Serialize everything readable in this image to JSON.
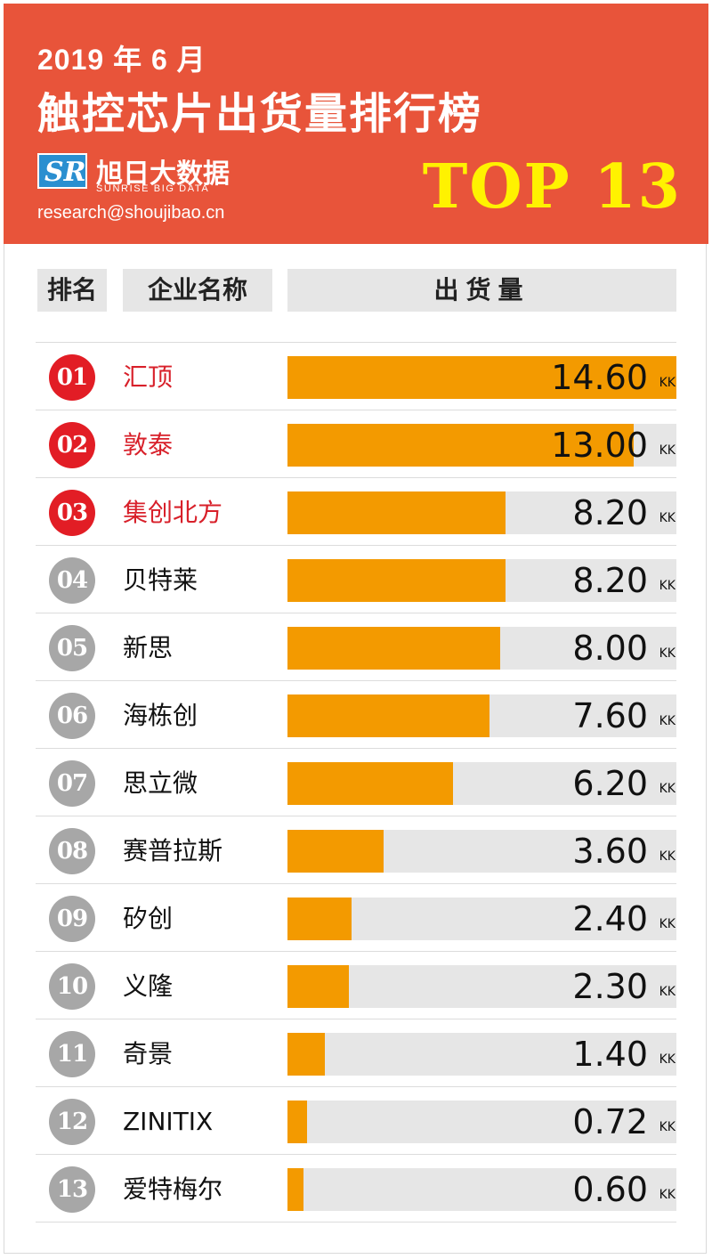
{
  "header": {
    "date": "2019 年 6 月",
    "title": "触控芯片出货量排行榜",
    "logo_mark": "SR",
    "logo_cn": "旭日大数据",
    "logo_en": "SUNRISE BIG DATA",
    "email": "research@shoujibao.cn",
    "top_label": "TOP 13"
  },
  "columns": {
    "rank": "排名",
    "name": "企业名称",
    "value": "出货量"
  },
  "colors": {
    "header_bg": "#e8543a",
    "bar": "#f39a00",
    "track": "#e6e6e6",
    "top3_badge": "#e21d25",
    "other_badge": "#a7a7a7"
  },
  "chart_data": {
    "type": "bar",
    "orientation": "horizontal",
    "unit": "KK",
    "xlim": [
      0,
      14.6
    ],
    "rows": [
      {
        "rank": "01",
        "name": "汇顶",
        "value": 14.6,
        "value_label": "14.60"
      },
      {
        "rank": "02",
        "name": "敦泰",
        "value": 13.0,
        "value_label": "13.00"
      },
      {
        "rank": "03",
        "name": "集创北方",
        "value": 8.2,
        "value_label": "8.20"
      },
      {
        "rank": "04",
        "name": "贝特莱",
        "value": 8.2,
        "value_label": "8.20"
      },
      {
        "rank": "05",
        "name": "新思",
        "value": 8.0,
        "value_label": "8.00"
      },
      {
        "rank": "06",
        "name": "海栋创",
        "value": 7.6,
        "value_label": "7.60"
      },
      {
        "rank": "07",
        "name": "思立微",
        "value": 6.2,
        "value_label": "6.20"
      },
      {
        "rank": "08",
        "name": "赛普拉斯",
        "value": 3.6,
        "value_label": "3.60"
      },
      {
        "rank": "09",
        "name": "矽创",
        "value": 2.4,
        "value_label": "2.40"
      },
      {
        "rank": "10",
        "name": "义隆",
        "value": 2.3,
        "value_label": "2.30"
      },
      {
        "rank": "11",
        "name": "奇景",
        "value": 1.4,
        "value_label": "1.40"
      },
      {
        "rank": "12",
        "name": "ZINITIX",
        "value": 0.72,
        "value_label": "0.72"
      },
      {
        "rank": "13",
        "name": "爱特梅尔",
        "value": 0.6,
        "value_label": "0.60"
      }
    ]
  }
}
